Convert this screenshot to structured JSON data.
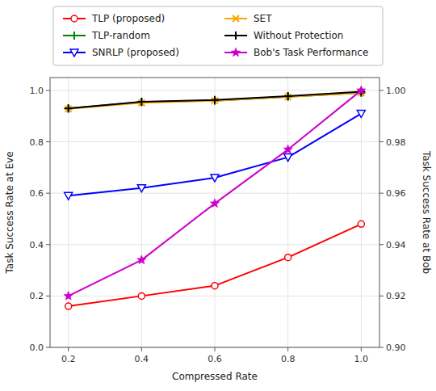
{
  "chart_data": {
    "type": "line",
    "xlabel": "Compressed Rate",
    "ylabel": "Task Success Rate at Eve",
    "y2label": "Task Success Rate at Bob",
    "x": [
      0.2,
      0.4,
      0.6,
      0.8,
      1.0
    ],
    "series": [
      {
        "name": "TLP (proposed)",
        "color": "#FF0000",
        "marker": "circle-open",
        "values": [
          0.16,
          0.2,
          0.24,
          0.35,
          0.48
        ]
      },
      {
        "name": "TLP-random",
        "color": "#008000",
        "marker": "plus",
        "values": [
          0.93,
          0.955,
          0.96,
          0.975,
          0.99
        ]
      },
      {
        "name": "SNRLP (proposed)",
        "color": "#0000FF",
        "marker": "triangle-down-open",
        "values": [
          0.59,
          0.62,
          0.66,
          0.74,
          0.91
        ]
      },
      {
        "name": "SET",
        "color": "#FFA500",
        "marker": "x",
        "values": [
          0.928,
          0.952,
          0.96,
          0.975,
          0.99
        ]
      },
      {
        "name": "Without Protection",
        "color": "#000000",
        "marker": "plus",
        "values": [
          0.93,
          0.956,
          0.963,
          0.978,
          0.995
        ]
      },
      {
        "name": "Bob's Task Performance",
        "color": "#CC00CC",
        "marker": "star",
        "axis": "y2",
        "values": [
          0.92,
          0.934,
          0.956,
          0.977,
          1.0
        ]
      }
    ],
    "xlim": [
      0.15,
      1.05
    ],
    "xticks": [
      0.2,
      0.4,
      0.6,
      0.8,
      {
        "value": 1.0,
        "label": "1.0"
      }
    ],
    "ylim": [
      0.0,
      1.05
    ],
    "yticks": [
      {
        "value": 0.0,
        "label": "0.0"
      },
      0.2,
      0.4,
      0.6,
      0.8,
      {
        "value": 1.0,
        "label": "1.0"
      }
    ],
    "y2lim": [
      0.9,
      1.005
    ],
    "y2ticks": [
      {
        "value": 0.9,
        "label": "0.90"
      },
      0.92,
      0.94,
      0.96,
      0.98,
      {
        "value": 1.0,
        "label": "1.00"
      }
    ],
    "grid": true,
    "legend": "top"
  }
}
